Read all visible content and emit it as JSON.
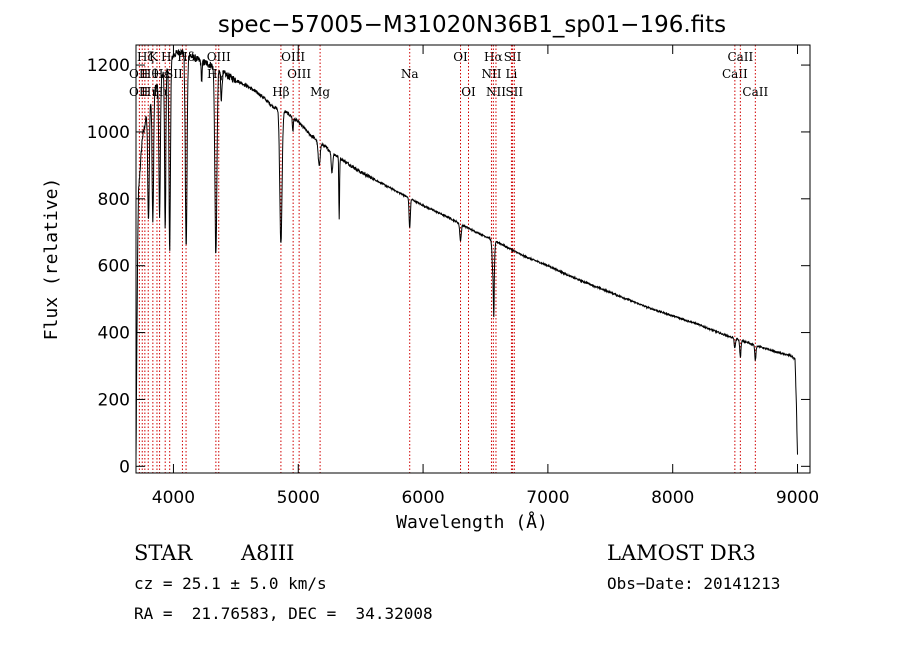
{
  "chart_data": {
    "type": "line",
    "title": "spec−57005−M31020N36B1_sp01−196.fits",
    "xlabel": "Wavelength (Å)",
    "ylabel": "Flux (relative)",
    "xlim": [
      3700,
      9100
    ],
    "ylim": [
      -20,
      1260
    ],
    "x_ticks": [
      "4000",
      "5000",
      "6000",
      "7000",
      "8000",
      "9000"
    ],
    "x_tick_values": [
      4000,
      5000,
      6000,
      7000,
      8000,
      9000
    ],
    "y_ticks": [
      "0",
      "200",
      "400",
      "600",
      "800",
      "1000",
      "1200"
    ],
    "y_tick_values": [
      0,
      200,
      400,
      600,
      800,
      1000,
      1200
    ],
    "continuum": {
      "x": [
        3700,
        3705,
        3712,
        3720,
        3750,
        3800,
        3850,
        3900,
        3950,
        4000,
        4050,
        4100,
        4150,
        4200,
        4300,
        4400,
        4500,
        4600,
        4700,
        4800,
        4900,
        5000,
        5100,
        5200,
        5300,
        5400,
        5500,
        5600,
        5700,
        5800,
        5900,
        6000,
        6200,
        6400,
        6600,
        6800,
        7000,
        7200,
        7500,
        7800,
        8000,
        8200,
        8400,
        8600,
        8800,
        8950,
        8980,
        8990,
        9000
      ],
      "y": [
        20,
        250,
        600,
        820,
        980,
        1080,
        1130,
        1160,
        1200,
        1230,
        1240,
        1235,
        1225,
        1215,
        1200,
        1175,
        1155,
        1135,
        1110,
        1075,
        1060,
        1030,
        990,
        960,
        930,
        905,
        880,
        860,
        840,
        820,
        800,
        780,
        745,
        705,
        670,
        630,
        600,
        565,
        520,
        475,
        450,
        425,
        395,
        370,
        345,
        330,
        320,
        200,
        30
      ]
    },
    "absorption_lines": [
      {
        "center": 3800,
        "depth": 350,
        "width": 6
      },
      {
        "center": 3835,
        "depth": 380,
        "width": 6
      },
      {
        "center": 3889,
        "depth": 400,
        "width": 6
      },
      {
        "center": 3934,
        "depth": 480,
        "width": 5
      },
      {
        "center": 3970,
        "depth": 560,
        "width": 6
      },
      {
        "center": 4102,
        "depth": 580,
        "width": 7
      },
      {
        "center": 4226,
        "depth": 60,
        "width": 4
      },
      {
        "center": 4340,
        "depth": 560,
        "width": 8
      },
      {
        "center": 4384,
        "depth": 80,
        "width": 5
      },
      {
        "center": 4861,
        "depth": 400,
        "width": 9
      },
      {
        "center": 4957,
        "depth": 40,
        "width": 4
      },
      {
        "center": 5167,
        "depth": 70,
        "width": 8
      },
      {
        "center": 5270,
        "depth": 60,
        "width": 6
      },
      {
        "center": 5328,
        "depth": 180,
        "width": 3
      },
      {
        "center": 5893,
        "depth": 90,
        "width": 5
      },
      {
        "center": 6300,
        "depth": 50,
        "width": 6
      },
      {
        "center": 6563,
        "depth": 120,
        "width": 8
      },
      {
        "center": 6567,
        "depth": 120,
        "width": 3
      },
      {
        "center": 8498,
        "depth": 30,
        "width": 5
      },
      {
        "center": 8542,
        "depth": 50,
        "width": 5
      },
      {
        "center": 8662,
        "depth": 45,
        "width": 5
      }
    ],
    "line_markers": [
      {
        "label": "Hδ",
        "x": 4101,
        "row": 1
      },
      {
        "label": "Hγ",
        "x": 4340,
        "row": 2
      },
      {
        "label": "Hβ",
        "x": 4861,
        "row": 3
      },
      {
        "label": "OIII",
        "x": 4363,
        "row": 1
      },
      {
        "label": "OIII",
        "x": 4959,
        "row": 1
      },
      {
        "label": "OIII",
        "x": 5007,
        "row": 2
      },
      {
        "label": "Mg",
        "x": 5175,
        "row": 3
      },
      {
        "label": "Na",
        "x": 5893,
        "row": 2
      },
      {
        "label": "OI",
        "x": 6300,
        "row": 1
      },
      {
        "label": "OI",
        "x": 6364,
        "row": 3
      },
      {
        "label": "Hα",
        "x": 6563,
        "row": 1
      },
      {
        "label": "NII",
        "x": 6548,
        "row": 2
      },
      {
        "label": "NII",
        "x": 6584,
        "row": 3
      },
      {
        "label": "SII",
        "x": 6717,
        "row": 1
      },
      {
        "label": "Li",
        "x": 6708,
        "row": 2
      },
      {
        "label": "SII",
        "x": 6731,
        "row": 3
      },
      {
        "label": "CaII",
        "x": 8498,
        "row": 2
      },
      {
        "label": "CaII",
        "x": 8542,
        "row": 1
      },
      {
        "label": "CaII",
        "x": 8662,
        "row": 3
      }
    ],
    "blue_cluster_lines": [
      3727,
      3750,
      3771,
      3798,
      3835,
      3868,
      3889,
      3934,
      3970,
      4072
    ],
    "blue_cluster_labels": [
      {
        "label": "Hζ",
        "row": 1
      },
      {
        "label": "K",
        "row": 1
      },
      {
        "label": "H",
        "row": 1
      },
      {
        "label": "OII",
        "row": 2
      },
      {
        "label": "Hθ",
        "row": 2
      },
      {
        "label": "Hε",
        "row": 2
      },
      {
        "label": "SII",
        "row": 2
      },
      {
        "label": "OII",
        "row": 3
      },
      {
        "label": "Hη",
        "row": 3
      },
      {
        "label": "Hι",
        "row": 3
      }
    ]
  },
  "info": {
    "object_type": "STAR",
    "subclass": "A8III",
    "survey": "LAMOST DR3",
    "cz": "cz = 25.1 ± 5.0 km/s",
    "obs_date": "Obs−Date: 20141213",
    "coords": "RA =  21.76583, DEC =  34.32008"
  }
}
